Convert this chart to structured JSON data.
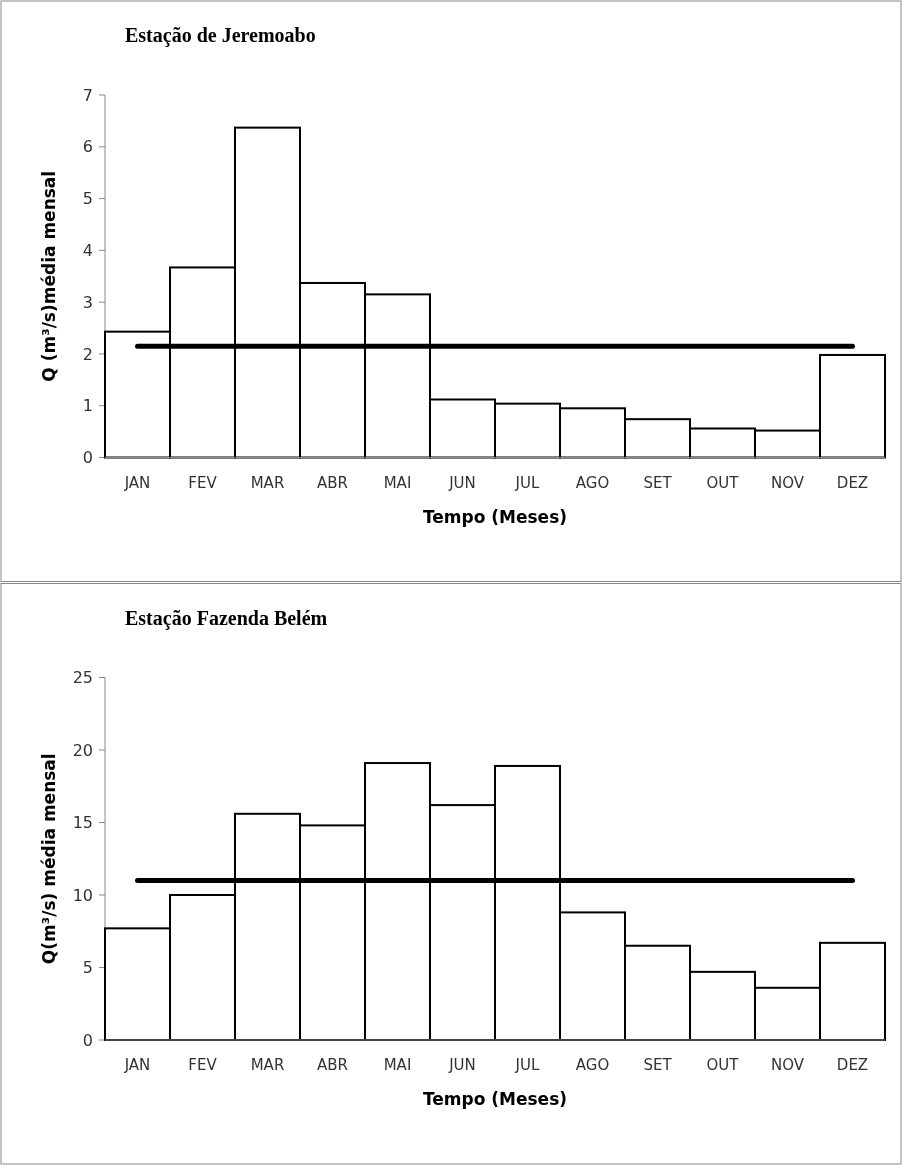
{
  "chart_data": [
    {
      "type": "bar",
      "title": "Estação de Jeremoabo",
      "xlabel": "Tempo (Meses)",
      "ylabel": "Q (m³/s)média mensal",
      "categories": [
        "JAN",
        "FEV",
        "MAR",
        "ABR",
        "MAI",
        "JUN",
        "JUL",
        "AGO",
        "SET",
        "OUT",
        "NOV",
        "DEZ"
      ],
      "values": [
        2.43,
        3.67,
        6.37,
        3.37,
        3.15,
        1.12,
        1.04,
        0.95,
        0.74,
        0.56,
        0.52,
        1.98
      ],
      "color": "#ffffff",
      "ylim": [
        0,
        7
      ],
      "yticks": [
        0,
        1,
        2,
        3,
        4,
        5,
        6,
        7
      ],
      "grid": false,
      "ref_lines": [
        {
          "axis": "y",
          "value": 2.15,
          "color": "#000000"
        }
      ]
    },
    {
      "type": "bar",
      "title": "Estação Fazenda Belém",
      "xlabel": "Tempo (Meses)",
      "ylabel": "Q(m³/s) média mensal",
      "categories": [
        "JAN",
        "FEV",
        "MAR",
        "ABR",
        "MAI",
        "JUN",
        "JUL",
        "AGO",
        "SET",
        "OUT",
        "NOV",
        "DEZ"
      ],
      "values": [
        7.7,
        10.0,
        15.6,
        14.8,
        19.1,
        16.2,
        18.9,
        8.8,
        6.5,
        4.7,
        3.6,
        6.7
      ],
      "color": "#ffffff",
      "ylim": [
        0,
        25
      ],
      "yticks": [
        0,
        5,
        10,
        15,
        20,
        25
      ],
      "grid": false,
      "ref_lines": [
        {
          "axis": "y",
          "value": 11.0,
          "color": "#000000"
        }
      ]
    }
  ]
}
